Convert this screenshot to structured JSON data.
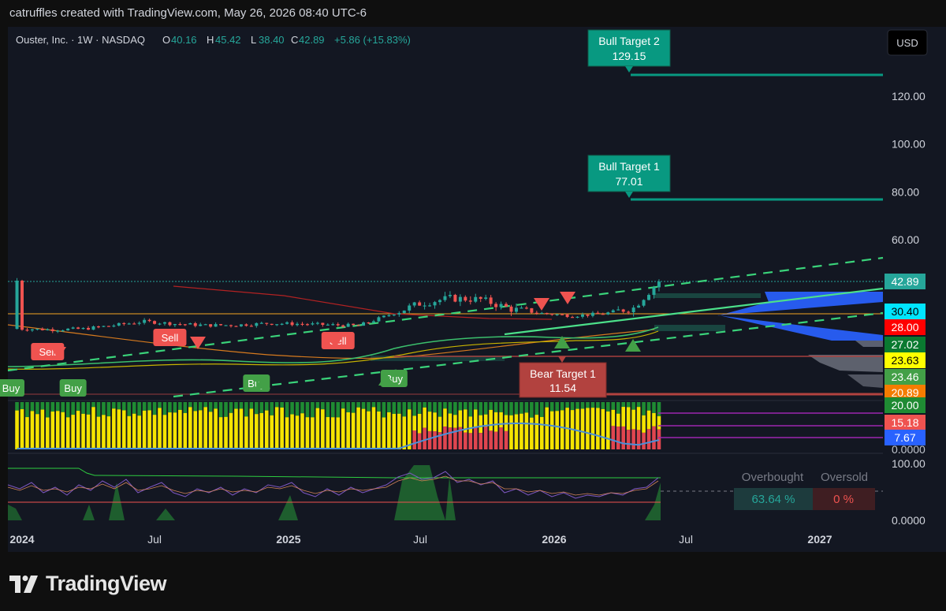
{
  "header": {
    "attribution": "catruffles created with TradingView.com, May 26, 2026 08:40 UTC-6"
  },
  "legend": {
    "symbol": "Ouster, Inc. · 1W · NASDAQ",
    "o_label": "O",
    "o_value": "40.16",
    "h_label": "H",
    "h_value": "45.42",
    "l_label": "L",
    "l_value": "38.40",
    "c_label": "C",
    "c_value": "42.89",
    "change": "+5.86 (+15.83%)"
  },
  "currency_button": "USD",
  "brand": "TradingView",
  "colors": {
    "background": "#131722",
    "up": "#26a69a",
    "down": "#ef5350",
    "target_green": "#089981",
    "bear_red": "#b2423f",
    "channel": "#3ad37a",
    "volume_profile": "#2962ff"
  },
  "chart_data": [
    {
      "type": "line",
      "title": "Ouster, Inc. · 1W · NASDAQ",
      "xlabel": "",
      "ylabel": "",
      "x_ticks": [
        "2024",
        "Jul",
        "2025",
        "Jul",
        "2026",
        "Jul",
        "2027"
      ],
      "x_range": [
        "2023-12-25",
        "2027-03-08"
      ],
      "y_ticks": [
        60,
        80,
        100,
        120
      ],
      "y_range": [
        20,
        135
      ],
      "price_series": {
        "name": "",
        "x": [
          "2024-01-01",
          "2024-02-12",
          "2024-03-25",
          "2024-05-06",
          "2024-06-17",
          "2024-07-29",
          "2024-09-09",
          "2024-10-21",
          "2024-12-02",
          "2025-01-13",
          "2025-02-24",
          "2025-04-07",
          "2025-05-19",
          "2025-06-30",
          "2025-08-11",
          "2025-09-22",
          "2025-11-03",
          "2025-12-15",
          "2026-01-26",
          "2026-03-09",
          "2026-04-20",
          "2026-05-26"
        ],
        "y": [
          22.7,
          22.4,
          22.7,
          24.2,
          25.8,
          24.8,
          24.2,
          24.3,
          25.0,
          24.8,
          24.4,
          24.0,
          28.5,
          33.3,
          35.5,
          35.0,
          31.0,
          29.2,
          28.2,
          29.0,
          31.5,
          42.89
        ]
      },
      "price_labels": [
        {
          "value": "42.89",
          "color": "#26a69a"
        },
        {
          "value": "30.40",
          "color": "#00e5ff"
        },
        {
          "value": "28.00",
          "color": "#ff0000"
        },
        {
          "value": "27.02",
          "color": "#0a7a30"
        },
        {
          "value": "23.63",
          "color": "#ffff00"
        },
        {
          "value": "23.46",
          "color": "#43a047"
        },
        {
          "value": "20.89",
          "color": "#f57c00"
        }
      ],
      "targets": [
        {
          "title": "Bull Target 2",
          "value": "129.15",
          "start": "2025-10-13"
        },
        {
          "title": "Bull Target 1",
          "value": "77.01",
          "start": "2025-10-13"
        },
        {
          "title": "Bear Target 1",
          "value": "11.54",
          "start": "2025-12-01"
        }
      ],
      "signals": [
        {
          "label": "Sell",
          "x": "2024-02-05"
        },
        {
          "label": "Buy",
          "x": "2024-01-01"
        },
        {
          "label": "Buy",
          "x": "2024-03-11"
        },
        {
          "label": "Sell",
          "x": "2024-07-22"
        },
        {
          "label": "Buy",
          "x": "2024-11-18"
        },
        {
          "label": "Sell",
          "x": "2025-03-10"
        },
        {
          "label": "Buy",
          "x": "2025-05-26"
        }
      ],
      "grid": false
    },
    {
      "type": "area",
      "title": "",
      "y_ticks": [
        0,
        20,
        15.18,
        7.67
      ],
      "labels": [
        {
          "value": "20.00",
          "color": "#1f8b33"
        },
        {
          "value": "15.18",
          "color": "#ef5350"
        },
        {
          "value": "7.67",
          "color": "#2962ff"
        },
        {
          "value": "0.0000",
          "color": "#bfc3cc"
        }
      ]
    },
    {
      "type": "line",
      "title": "",
      "y_ticks": [
        0,
        100
      ],
      "tick_labels": [
        "100.00",
        "0.0000"
      ],
      "overbought_label": "Overbought",
      "oversold_label": "Oversold",
      "overbought_value": "63.64 %",
      "oversold_value": "0 %"
    }
  ]
}
